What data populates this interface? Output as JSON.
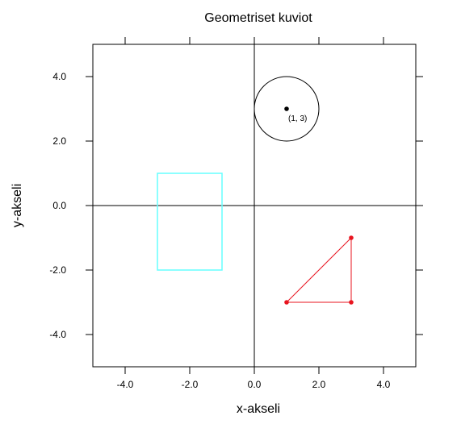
{
  "chart_data": {
    "type": "scatter",
    "title": "Geometriset kuviot",
    "xlabel": "x-akseli",
    "ylabel": "y-akseli",
    "xlim": [
      -5,
      5
    ],
    "ylim": [
      -5,
      5
    ],
    "xticks": [
      -4,
      -2,
      0,
      2,
      4
    ],
    "yticks": [
      -4,
      -2,
      0,
      2,
      4
    ],
    "xtick_labels": [
      "-4.0",
      "-2.0",
      "0.0",
      "2.0",
      "4.0"
    ],
    "ytick_labels": [
      "-4.0",
      "-2.0",
      "0.0",
      "2.0",
      "4.0"
    ],
    "grid": false,
    "reference_lines": {
      "x": 0,
      "y": 0
    },
    "shapes": {
      "circle": {
        "center": [
          1,
          3
        ],
        "radius": 1,
        "color": "#000000"
      },
      "rectangle": {
        "x": [
          -3,
          -1
        ],
        "y": [
          -2,
          1
        ],
        "color": "#66ffff"
      },
      "triangle": {
        "points": [
          [
            1,
            -3
          ],
          [
            3,
            -3
          ],
          [
            3,
            -1
          ]
        ],
        "color": "#e8141f"
      }
    },
    "annotations": [
      {
        "text": "(1, 3)",
        "x": 1,
        "y": 3
      }
    ]
  }
}
